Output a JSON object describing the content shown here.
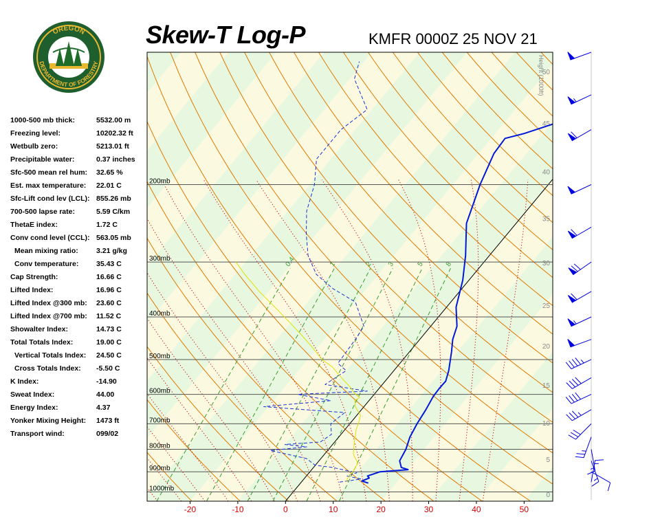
{
  "header": {
    "title": "Skew-T Log-P",
    "subtitle": "KMFR 0000Z 25 NOV 21"
  },
  "logo": {
    "top_text": "OREGON",
    "bottom_text": "DEPARTMENT OF FORESTRY",
    "colors": {
      "ring": "#1f5f2e",
      "gold": "#e8b830",
      "tree": "#1e6b2a"
    }
  },
  "stats": [
    {
      "label": "1000-500 mb thick:",
      "value": "5532.00 m"
    },
    {
      "label": "Freezing level:",
      "value": "10202.32 ft"
    },
    {
      "label": "Wetbulb zero:",
      "value": "5213.01 ft"
    },
    {
      "label": "Precipitable water:",
      "value": "0.37 inches"
    },
    {
      "label": "Sfc-500 mean rel hum:",
      "value": "32.65 %"
    },
    {
      "label": "Est. max temperature:",
      "value": "22.01 C"
    },
    {
      "label": "Sfc-Lift cond lev (LCL):",
      "value": "855.26 mb"
    },
    {
      "label": "700-500 lapse rate:",
      "value": "5.59 C/km"
    },
    {
      "label": "ThetaE index:",
      "value": "1.72 C"
    },
    {
      "label": "Conv cond level (CCL):",
      "value": "563.05 mb"
    },
    {
      "label": "Mean mixing ratio:",
      "value": "3.21 g/kg",
      "indent": true
    },
    {
      "label": "Conv temperature:",
      "value": "35.43 C",
      "indent": true
    },
    {
      "label": "Cap Strength:",
      "value": "16.66 C"
    },
    {
      "label": "Lifted Index:",
      "value": "16.96 C"
    },
    {
      "label": "Lifted Index @300 mb:",
      "value": "23.60 C"
    },
    {
      "label": "Lifted Index @700 mb:",
      "value": "11.52 C"
    },
    {
      "label": "Showalter Index:",
      "value": "14.73 C"
    },
    {
      "label": "Total Totals Index:",
      "value": "19.00 C"
    },
    {
      "label": "Vertical Totals Index:",
      "value": "24.50 C",
      "indent": true
    },
    {
      "label": "Cross Totals Index:",
      "value": "-5.50 C",
      "indent": true
    },
    {
      "label": "K Index:",
      "value": "-14.90"
    },
    {
      "label": "Sweat Index:",
      "value": "44.00"
    },
    {
      "label": "Energy Index:",
      "value": "4.37"
    },
    {
      "label": "Yonker Mixing Height:",
      "value": "1473 ft"
    },
    {
      "label": "Transport wind:",
      "value": "099/02"
    }
  ],
  "chart_data": {
    "type": "line",
    "title": "Skew-T Log-P",
    "subtitle": "KMFR 0000Z 25 NOV 21",
    "xlabel": "",
    "ylabel": "",
    "x_unit": "C",
    "xlim": [
      -29,
      56
    ],
    "ylim_mb": [
      1050,
      100
    ],
    "x_ticks": [
      -20,
      -10,
      0,
      10,
      20,
      30,
      40,
      50
    ],
    "pressure_labels": [
      {
        "p": 200,
        "text": "200mb"
      },
      {
        "p": 300,
        "text": "300mb"
      },
      {
        "p": 400,
        "text": "400mb"
      },
      {
        "p": 500,
        "text": "500mb"
      },
      {
        "p": 600,
        "text": "600mb"
      },
      {
        "p": 700,
        "text": "700mb"
      },
      {
        "p": 800,
        "text": "800mb"
      },
      {
        "p": 900,
        "text": "900mb"
      },
      {
        "p": 1000,
        "text": "1000mb"
      }
    ],
    "height_axis": {
      "label": "Height (1000ft)",
      "ticks": [
        {
          "ft": 0,
          "text": "0"
        },
        {
          "ft": 5,
          "text": "5"
        },
        {
          "ft": 10,
          "text": "10"
        },
        {
          "ft": 15,
          "text": "15"
        },
        {
          "ft": 20,
          "text": "20"
        },
        {
          "ft": 25,
          "text": "25"
        },
        {
          "ft": 30,
          "text": "30"
        },
        {
          "ft": 35,
          "text": "35"
        },
        {
          "ft": 40,
          "text": "40"
        },
        {
          "ft": 45,
          "text": "45"
        },
        {
          "ft": 50,
          "text": "50"
        }
      ]
    },
    "mixing_ratio_labels": [
      {
        "w": 0.4,
        "text": "0.4"
      },
      {
        "w": 1,
        "text": "1"
      },
      {
        "w": 2,
        "text": "2"
      },
      {
        "w": 3,
        "text": "3"
      },
      {
        "w": 5,
        "text": "5"
      },
      {
        "w": 8,
        "text": "8"
      }
    ],
    "series": [
      {
        "key": "temperature",
        "color": "#0018d8",
        "style": "solid",
        "points": [
          [
            14.2,
            955
          ],
          [
            12.5,
            945
          ],
          [
            13.5,
            930
          ],
          [
            12.8,
            920
          ],
          [
            14.7,
            900
          ],
          [
            20.2,
            890
          ],
          [
            18.4,
            880
          ],
          [
            16.9,
            850
          ],
          [
            16.2,
            800
          ],
          [
            14.9,
            750
          ],
          [
            14.1,
            700
          ],
          [
            13.5,
            650
          ],
          [
            12.8,
            610
          ],
          [
            12.7,
            600
          ],
          [
            12.6,
            580
          ],
          [
            12.7,
            560
          ],
          [
            11.5,
            530
          ],
          [
            8.8,
            480
          ],
          [
            6.9,
            450
          ],
          [
            5.5,
            420
          ],
          [
            2.0,
            380
          ],
          [
            -1.3,
            330
          ],
          [
            -5.0,
            290
          ],
          [
            -10.4,
            245
          ],
          [
            -14.3,
            200
          ],
          [
            -16.8,
            170
          ],
          [
            -17.1,
            157
          ],
          [
            -13.9,
            153
          ],
          [
            -6.0,
            140
          ],
          [
            -1.7,
            122
          ],
          [
            -0.5,
            108
          ]
        ]
      },
      {
        "key": "dewpoint",
        "color": "#1a30d8",
        "style": "dashed",
        "points": [
          [
            8.0,
            950
          ],
          [
            12.0,
            935
          ],
          [
            8.5,
            920
          ],
          [
            10.0,
            905
          ],
          [
            4.0,
            880
          ],
          [
            0.0,
            870
          ],
          [
            -1.0,
            860
          ],
          [
            -3.0,
            840
          ],
          [
            -12.0,
            805
          ],
          [
            -5.0,
            790
          ],
          [
            -10.0,
            780
          ],
          [
            -3.0,
            770
          ],
          [
            -2.0,
            740
          ],
          [
            -4.0,
            700
          ],
          [
            -3.0,
            660
          ],
          [
            -21.0,
            640
          ],
          [
            -8.0,
            620
          ],
          [
            -16.0,
            600
          ],
          [
            -2.0,
            590
          ],
          [
            -12.0,
            570
          ],
          [
            -10.0,
            530
          ],
          [
            -13.0,
            510
          ],
          [
            -13.5,
            450
          ],
          [
            -14.0,
            420
          ],
          [
            -20.0,
            370
          ],
          [
            -27.0,
            345
          ],
          [
            -33.0,
            320
          ],
          [
            -38.0,
            290
          ],
          [
            -42.0,
            260
          ],
          [
            -46.0,
            230
          ],
          [
            -49.0,
            200
          ],
          [
            -53.0,
            175
          ],
          [
            -53.0,
            150
          ],
          [
            -51.0,
            135
          ],
          [
            -59.0,
            115
          ],
          [
            -61.0,
            105
          ]
        ]
      },
      {
        "key": "parcel",
        "color": "#e0e000",
        "style": "solid",
        "points": [
          [
            9.4,
            950
          ],
          [
            9.0,
            930
          ],
          [
            9.0,
            900
          ],
          [
            8.5,
            860
          ],
          [
            6.0,
            820
          ],
          [
            4.5,
            780
          ],
          [
            2.3,
            720
          ],
          [
            1.5,
            690
          ],
          [
            0.8,
            670
          ],
          [
            -1.8,
            640
          ],
          [
            -3.0,
            620
          ],
          [
            -2.5,
            610
          ],
          [
            -4.5,
            595
          ],
          [
            -6.0,
            580
          ],
          [
            -8.5,
            560
          ],
          [
            -11.0,
            540
          ],
          [
            -13.5,
            520
          ],
          [
            -17.0,
            500
          ],
          [
            -21.0,
            470
          ],
          [
            -25.5,
            440
          ],
          [
            -30.5,
            410
          ],
          [
            -36.0,
            380
          ],
          [
            -42.0,
            350
          ],
          [
            -48.0,
            320
          ],
          [
            -52.0,
            300
          ]
        ]
      }
    ],
    "wind_barbs": [
      {
        "p": 950,
        "dir": 10,
        "kt": 15
      },
      {
        "p": 900,
        "dir": 120,
        "kt": 10
      },
      {
        "p": 850,
        "dir": 160,
        "kt": 15
      },
      {
        "p": 800,
        "dir": 170,
        "kt": 15
      },
      {
        "p": 750,
        "dir": 200,
        "kt": 25
      },
      {
        "p": 700,
        "dir": 225,
        "kt": 30
      },
      {
        "p": 650,
        "dir": 240,
        "kt": 35
      },
      {
        "p": 600,
        "dir": 245,
        "kt": 40
      },
      {
        "p": 550,
        "dir": 240,
        "kt": 40
      },
      {
        "p": 500,
        "dir": 245,
        "kt": 45
      },
      {
        "p": 450,
        "dir": 250,
        "kt": 50
      },
      {
        "p": 400,
        "dir": 245,
        "kt": 55
      },
      {
        "p": 350,
        "dir": 240,
        "kt": 60
      },
      {
        "p": 300,
        "dir": 235,
        "kt": 70
      },
      {
        "p": 250,
        "dir": 240,
        "kt": 60
      },
      {
        "p": 200,
        "dir": 245,
        "kt": 50
      },
      {
        "p": 150,
        "dir": 240,
        "kt": 60
      },
      {
        "p": 125,
        "dir": 245,
        "kt": 55
      },
      {
        "p": 100,
        "dir": 250,
        "kt": 50
      }
    ],
    "colors": {
      "frame": "#000000",
      "dry_adiabat": "#e07800",
      "moist_adiabat": "#cc0000",
      "mixing_ratio": "#3a9a30",
      "isobar": "#555555",
      "tick_label": "#d00000",
      "bg_green": "#e8f8e0",
      "bg_yellow": "#fbfae0"
    }
  }
}
